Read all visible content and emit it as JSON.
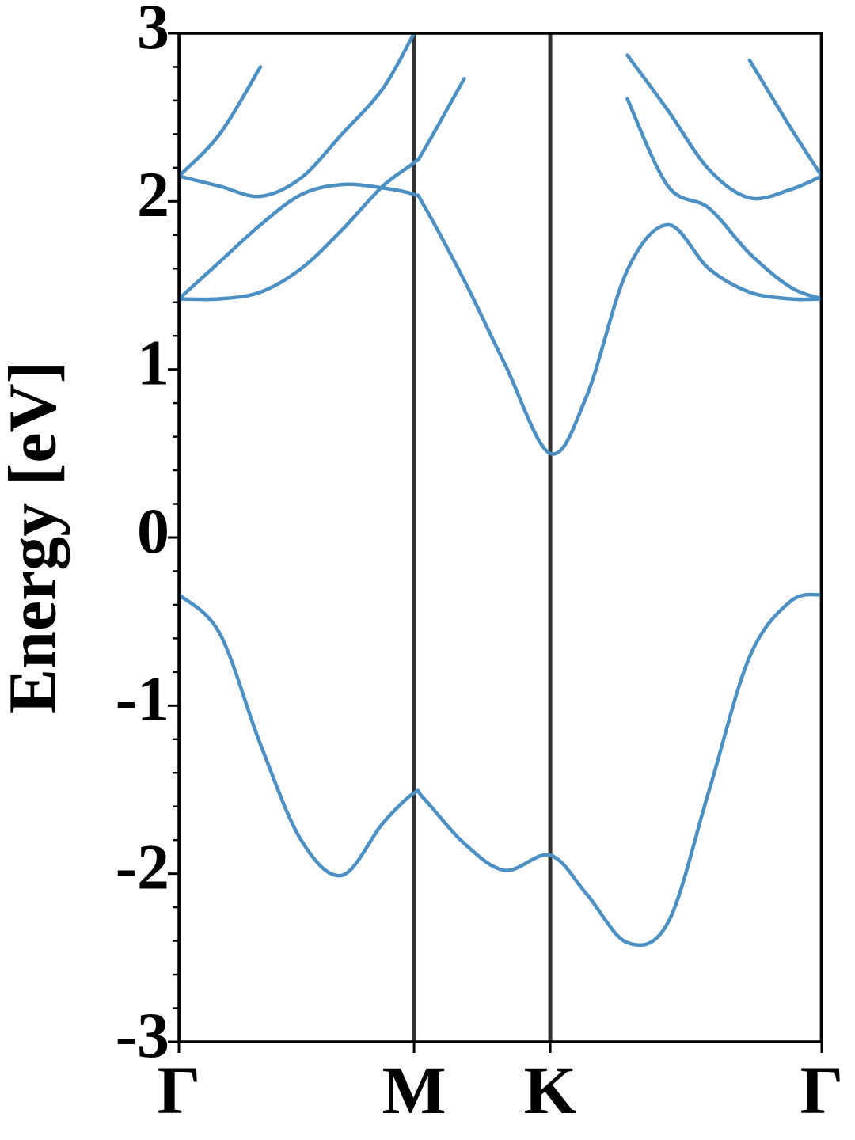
{
  "chart_data": {
    "type": "line",
    "ylabel": "Energy [eV]",
    "x": [
      0,
      0.1,
      0.2,
      0.3,
      0.4,
      0.5,
      0.577,
      0.6,
      0.7,
      0.8,
      0.911,
      1.0,
      1.1,
      1.2,
      1.3,
      1.4,
      1.5,
      1.577
    ],
    "series": [
      {
        "color": "#4b8fc3",
        "values": [
          -0.34,
          -0.57,
          -1.23,
          -1.8,
          -2.01,
          -1.7,
          -1.52,
          -1.55,
          -1.82,
          -1.98,
          -1.89,
          -2.12,
          -2.41,
          -2.29,
          -1.51,
          -0.71,
          -0.38,
          -0.34
        ]
      },
      {
        "color": "#4b8fc3",
        "values": [
          1.42,
          1.64,
          1.86,
          2.04,
          2.1,
          2.08,
          2.04,
          1.98,
          1.53,
          1.03,
          0.5,
          0.84,
          1.59,
          1.86,
          1.6,
          1.46,
          1.42,
          1.42
        ]
      },
      {
        "color": "#4b8fc3",
        "values": [
          1.42,
          1.42,
          1.46,
          1.6,
          1.83,
          2.09,
          2.23,
          2.3,
          2.73,
          null,
          null,
          null,
          null,
          null,
          null,
          null,
          null,
          null
        ]
      },
      {
        "color": "#4b8fc3",
        "values": [
          null,
          null,
          null,
          null,
          null,
          null,
          null,
          null,
          null,
          null,
          null,
          null,
          2.61,
          2.09,
          1.96,
          1.69,
          1.49,
          1.42
        ]
      },
      {
        "color": "#4b8fc3",
        "values": [
          2.15,
          2.09,
          2.03,
          2.14,
          2.4,
          2.67,
          3.0,
          null,
          null,
          null,
          null,
          null,
          2.87,
          2.54,
          2.19,
          2.02,
          2.07,
          2.15
        ]
      },
      {
        "color": "#4b8fc3",
        "values": [
          2.15,
          2.4,
          2.8,
          null,
          null,
          null,
          null,
          null,
          null,
          null,
          null,
          null,
          null,
          null,
          null,
          2.84,
          2.44,
          2.15
        ]
      }
    ],
    "xlim": [
      0,
      1.577
    ],
    "xticks": [
      {
        "value": 0,
        "label": "Γ"
      },
      {
        "value": 0.577,
        "label": "M"
      },
      {
        "value": 0.911,
        "label": "K"
      },
      {
        "value": 1.577,
        "label": "Γ"
      }
    ],
    "xtick_lines": true,
    "ylim": [
      -3,
      3
    ],
    "yticks": [
      -3,
      -2,
      -1,
      0,
      1,
      2,
      3
    ],
    "yminorticks": [
      -2.8,
      -2.6,
      -2.4,
      -2.2,
      -1.8,
      -1.6,
      -1.4,
      -1.2,
      -0.8,
      -0.6,
      -0.4,
      -0.2,
      0.2,
      0.4,
      0.6,
      0.8,
      1.2,
      1.4,
      1.6,
      1.8,
      2.2,
      2.4,
      2.6,
      2.8
    ]
  }
}
